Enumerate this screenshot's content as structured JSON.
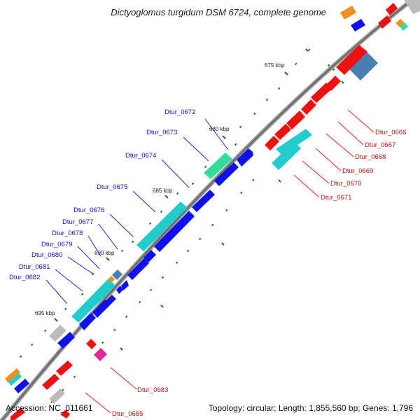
{
  "title": "Dictyoglomus turgidum DSM 6724, complete genome",
  "footer": {
    "accession": "Accession: NC_011661",
    "topology": "Topology: circular; Length: 1,855,560 bp; Genes: 1,796"
  },
  "colors": {
    "forward_cds": "#1010ee",
    "reverse_cds": "#ee1111",
    "cyan_feature": "#22cccc",
    "green_feature": "#33dd99",
    "steelblue_feature": "#4a7fb5",
    "gray_feature": "#bbbbbb",
    "orange_feature": "#f09020",
    "magenta_feature": "#ee2299",
    "backbone": "#777777",
    "forward_label": "#1111cc",
    "reverse_label": "#cc1111",
    "tick": "#117711"
  },
  "ticks": [
    "675 kbp",
    "680 kbp",
    "685 kbp",
    "690 kbp",
    "695 kbp"
  ],
  "forward_labels": [
    "Dtur_0672",
    "Dtur_0673",
    "Dtur_0674",
    "Dtur_0675",
    "Dtur_0676",
    "Dtur_0677",
    "Dtur_0678",
    "Dtur_0679",
    "Dtur_0680",
    "Dtur_0681",
    "Dtur_0682"
  ],
  "reverse_labels": [
    "Dtur_0666",
    "Dtur_0667",
    "Dtur_0668",
    "Dtur_0669",
    "Dtur_0670",
    "Dtur_0671",
    "Dtur_0683",
    "Dtur_0685"
  ]
}
